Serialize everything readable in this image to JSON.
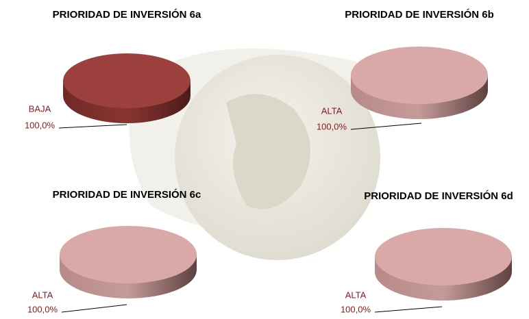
{
  "chart_data": [
    {
      "type": "pie",
      "title": "PRIORIDAD DE INVERSIÓN 6a",
      "categories": [
        "BAJA"
      ],
      "values": [
        100
      ],
      "value_labels": [
        "100,0%"
      ],
      "colors": [
        "#9c403d"
      ]
    },
    {
      "type": "pie",
      "title": "PRIORIDAD DE INVERSIÓN 6b",
      "categories": [
        "ALTA"
      ],
      "values": [
        100
      ],
      "value_labels": [
        "100,0%"
      ],
      "colors": [
        "#d9a9a8"
      ]
    },
    {
      "type": "pie",
      "title": "PRIORIDAD DE INVERSIÓN 6c",
      "categories": [
        "ALTA"
      ],
      "values": [
        100
      ],
      "value_labels": [
        "100,0%"
      ],
      "colors": [
        "#d9a9a8"
      ]
    },
    {
      "type": "pie",
      "title": "PRIORIDAD DE INVERSIÓN 6d",
      "categories": [
        "ALTA"
      ],
      "values": [
        100
      ],
      "value_labels": [
        "100,0%"
      ],
      "colors": [
        "#d9a9a8"
      ]
    }
  ]
}
